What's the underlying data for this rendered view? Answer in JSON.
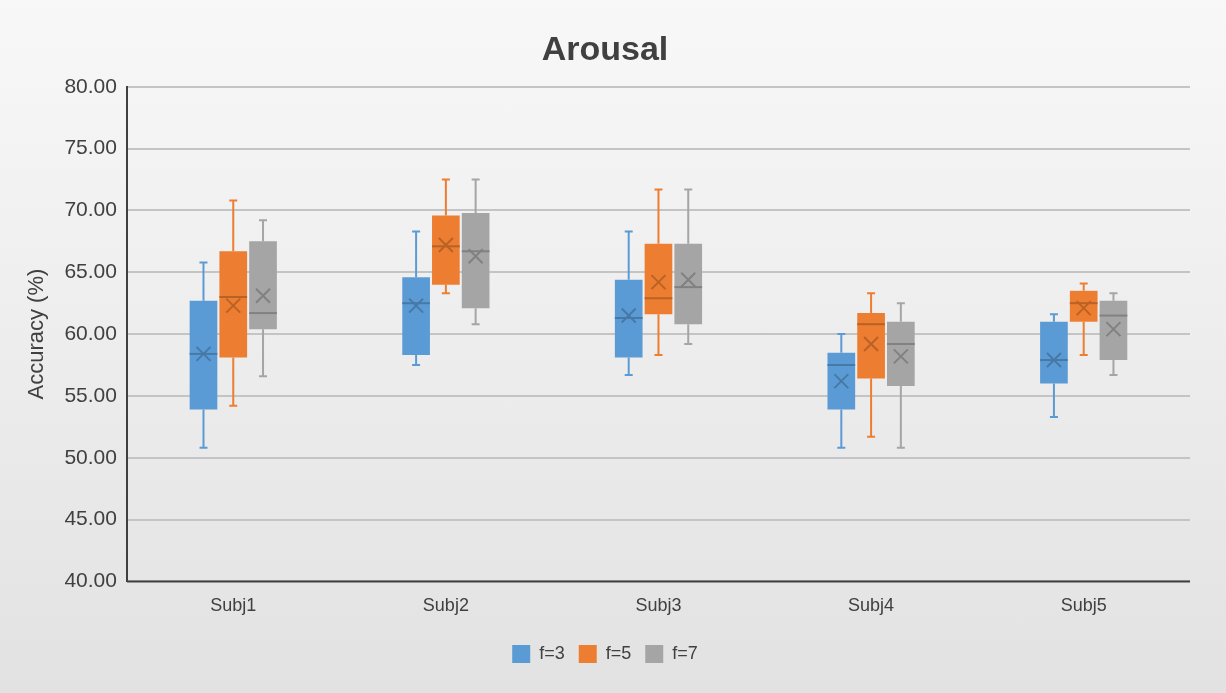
{
  "chart_data": {
    "type": "box",
    "title": "Arousal",
    "ylabel": "Accuracy (%)",
    "categories": [
      "Subj1",
      "Subj2",
      "Subj3",
      "Subj4",
      "Subj5"
    ],
    "ylim": [
      40,
      80
    ],
    "yticks": [
      {
        "value": 40,
        "label": "40.00"
      },
      {
        "value": 45,
        "label": "45.00"
      },
      {
        "value": 50,
        "label": "50.00"
      },
      {
        "value": 55,
        "label": "55.00"
      },
      {
        "value": 60,
        "label": "60.00"
      },
      {
        "value": 65,
        "label": "65.00"
      },
      {
        "value": 70,
        "label": "70.00"
      },
      {
        "value": 75,
        "label": "75.00"
      },
      {
        "value": 80,
        "label": "80.00"
      }
    ],
    "grid": "y",
    "legend": "bottom",
    "series": [
      {
        "name": "f=3",
        "color": "#5b9bd5",
        "boxes": [
          {
            "low": 50.8,
            "q1": 53.9,
            "median": 58.4,
            "q3": 62.7,
            "high": 65.8,
            "mean": 58.4
          },
          {
            "low": 57.5,
            "q1": 58.3,
            "median": 62.5,
            "q3": 64.6,
            "high": 68.3,
            "mean": 62.3
          },
          {
            "low": 56.7,
            "q1": 58.1,
            "median": 61.3,
            "q3": 64.4,
            "high": 68.3,
            "mean": 61.5
          },
          {
            "low": 50.8,
            "q1": 53.9,
            "median": 57.5,
            "q3": 58.5,
            "high": 60.0,
            "mean": 56.2
          },
          {
            "low": 53.3,
            "q1": 56.0,
            "median": 57.9,
            "q3": 61.0,
            "high": 61.6,
            "mean": 57.9
          }
        ]
      },
      {
        "name": "f=5",
        "color": "#ed7d31",
        "boxes": [
          {
            "low": 54.2,
            "q1": 58.1,
            "median": 63.0,
            "q3": 66.7,
            "high": 70.8,
            "mean": 62.3
          },
          {
            "low": 63.3,
            "q1": 64.0,
            "median": 67.1,
            "q3": 69.6,
            "high": 72.5,
            "mean": 67.2
          },
          {
            "low": 58.3,
            "q1": 61.6,
            "median": 62.9,
            "q3": 67.3,
            "high": 71.7,
            "mean": 64.2
          },
          {
            "low": 51.7,
            "q1": 56.4,
            "median": 60.8,
            "q3": 61.7,
            "high": 63.3,
            "mean": 59.2
          },
          {
            "low": 58.3,
            "q1": 61.0,
            "median": 62.5,
            "q3": 63.5,
            "high": 64.1,
            "mean": 62.1
          }
        ]
      },
      {
        "name": "f=7",
        "color": "#a5a5a5",
        "boxes": [
          {
            "low": 56.6,
            "q1": 60.4,
            "median": 61.7,
            "q3": 67.5,
            "high": 69.2,
            "mean": 63.1
          },
          {
            "low": 60.8,
            "q1": 62.1,
            "median": 66.7,
            "q3": 69.8,
            "high": 72.5,
            "mean": 66.3
          },
          {
            "low": 59.2,
            "q1": 60.8,
            "median": 63.8,
            "q3": 67.3,
            "high": 71.7,
            "mean": 64.4
          },
          {
            "low": 50.8,
            "q1": 55.8,
            "median": 59.2,
            "q3": 61.0,
            "high": 62.5,
            "mean": 58.2
          },
          {
            "low": 56.7,
            "q1": 57.9,
            "median": 61.5,
            "q3": 62.7,
            "high": 63.3,
            "mean": 60.4
          }
        ]
      }
    ]
  }
}
